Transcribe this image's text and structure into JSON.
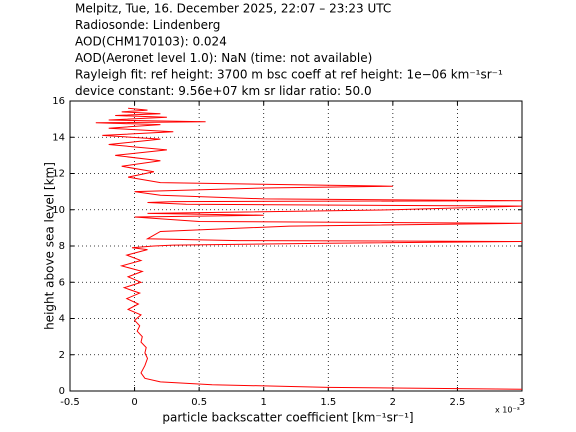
{
  "chart_data": {
    "type": "line",
    "header": [
      "Melpitz, Tue, 16. December 2025, 22:07 – 23:23 UTC",
      "Radiosonde: Lindenberg",
      "AOD(CHM170103): 0.024",
      "AOD(Aeronet level 1.0): NaN   (time: not available)",
      "Rayleigh fit:     ref height: 3700 m     bsc coeff at ref height: 1e−06 km⁻¹sr⁻¹",
      "device constant: 9.56e+07 km sr     lidar ratio: 50.0"
    ],
    "xlabel": "particle backscatter coefficient [km⁻¹sr⁻¹]",
    "ylabel": "height above sea level [km]",
    "x_multiplier": "x 10⁻³",
    "color": "#ff0000",
    "grid": true,
    "xlim": [
      -0.5,
      3
    ],
    "ylim": [
      0,
      16
    ],
    "xticks": [
      -0.5,
      0,
      0.5,
      1,
      1.5,
      2,
      2.5,
      3
    ],
    "yticks": [
      0,
      2,
      4,
      6,
      8,
      10,
      12,
      14,
      16
    ],
    "x": [
      3.0,
      1.5,
      0.6,
      0.2,
      0.08,
      0.05,
      0.08,
      0.1,
      0.08,
      0.09,
      0.05,
      0.06,
      0.02,
      0.04,
      0.0,
      0.05,
      -0.05,
      0.03,
      -0.06,
      0.04,
      -0.08,
      0.05,
      -0.05,
      0.06,
      -0.1,
      0.05,
      -0.06,
      0.1,
      -0.02,
      0.15,
      0.3,
      1.5,
      3.0,
      0.8,
      0.1,
      0.2,
      1.2,
      3.0,
      0.5,
      0.0,
      1.0,
      0.1,
      2.0,
      3.0,
      0.4,
      0.1,
      0.3,
      3.0,
      1.0,
      0.2,
      0.0,
      1.0,
      2.0,
      1.5,
      0.2,
      -0.05,
      0.15,
      -0.1,
      0.2,
      -0.15,
      0.25,
      -0.2,
      0.2,
      -0.25,
      0.3,
      -0.2,
      0.2,
      -0.3,
      0.55,
      -0.2,
      0.25,
      -0.15,
      0.2,
      -0.1,
      0.1,
      -0.05
    ],
    "y": [
      0.1,
      0.2,
      0.35,
      0.5,
      0.7,
      1.0,
      1.4,
      1.8,
      2.1,
      2.4,
      2.7,
      3.0,
      3.3,
      3.6,
      3.9,
      4.2,
      4.5,
      4.8,
      5.1,
      5.4,
      5.7,
      6.0,
      6.3,
      6.6,
      6.9,
      7.2,
      7.5,
      7.8,
      7.9,
      8.0,
      8.05,
      8.15,
      8.25,
      8.3,
      8.4,
      8.8,
      9.1,
      9.25,
      9.35,
      9.6,
      9.7,
      9.8,
      10.0,
      10.2,
      10.3,
      10.4,
      10.45,
      10.5,
      10.6,
      10.8,
      11.0,
      11.2,
      11.3,
      11.35,
      11.5,
      11.8,
      12.1,
      12.4,
      12.7,
      13.0,
      13.3,
      13.6,
      13.9,
      14.1,
      14.3,
      14.5,
      14.7,
      14.8,
      14.85,
      14.95,
      15.1,
      15.2,
      15.3,
      15.4,
      15.5,
      15.6
    ]
  }
}
